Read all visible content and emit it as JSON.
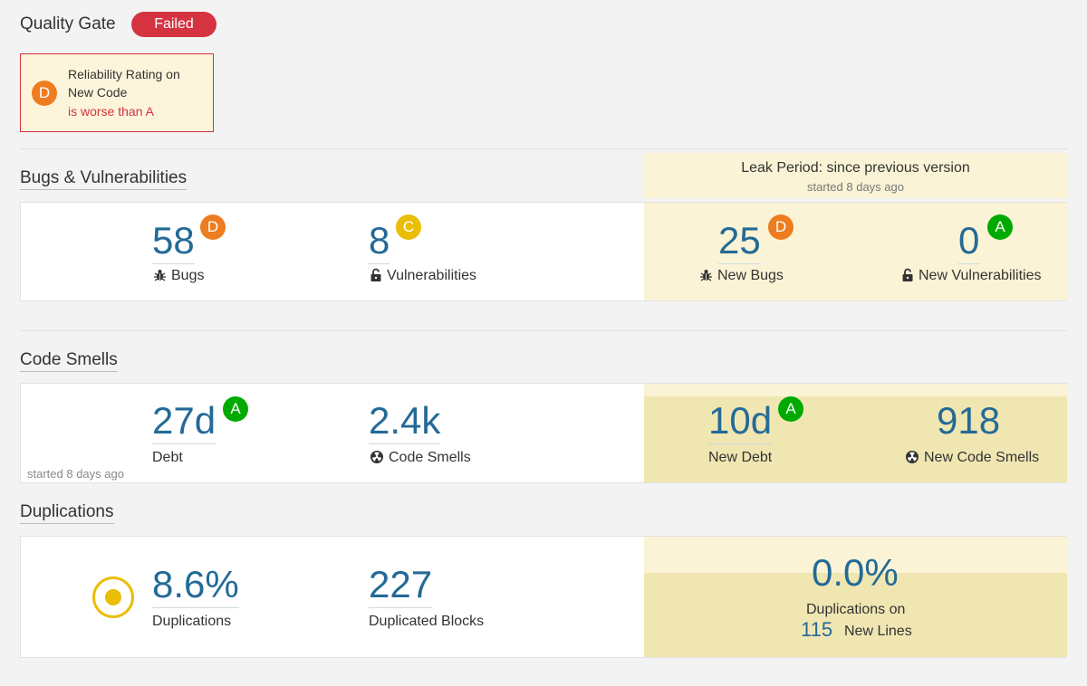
{
  "quality_gate": {
    "title": "Quality Gate",
    "status": "Failed",
    "condition": {
      "rating": "D",
      "metric": "Reliability Rating on New Code",
      "operator": "is worse than A"
    }
  },
  "leak_period": {
    "title": "Leak Period: since previous version",
    "started": "started 8 days ago"
  },
  "bugs_vulns": {
    "title": "Bugs & Vulnerabilities",
    "bugs": {
      "value": "58",
      "rating": "D",
      "label": "Bugs"
    },
    "vulnerabilities": {
      "value": "8",
      "rating": "C",
      "label": "Vulnerabilities"
    },
    "new_bugs": {
      "value": "25",
      "rating": "D",
      "label": "New Bugs"
    },
    "new_vulnerabilities": {
      "value": "0",
      "rating": "A",
      "label": "New Vulnerabilities"
    }
  },
  "code_smells": {
    "title": "Code Smells",
    "debt": {
      "value": "27d",
      "rating": "A",
      "label": "Debt"
    },
    "smells": {
      "value": "2.4k",
      "label": "Code Smells"
    },
    "started": "started 8 days ago",
    "new_debt": {
      "value": "10d",
      "rating": "A",
      "label": "New Debt"
    },
    "new_smells": {
      "value": "918",
      "label": "New Code Smells"
    }
  },
  "duplications": {
    "title": "Duplications",
    "density": {
      "value": "8.6%",
      "label": "Duplications"
    },
    "blocks": {
      "value": "227",
      "label": "Duplicated Blocks"
    },
    "new_density": {
      "value": "0.0%",
      "label": "Duplications on"
    },
    "new_lines": {
      "value": "115",
      "label": "New Lines"
    }
  },
  "colors": {
    "failed": "#d4333f",
    "rating_D": "#ed7d20",
    "rating_C": "#eabe06",
    "rating_A": "#00aa00",
    "link": "#236a97",
    "leak": "#f0e6b2"
  }
}
